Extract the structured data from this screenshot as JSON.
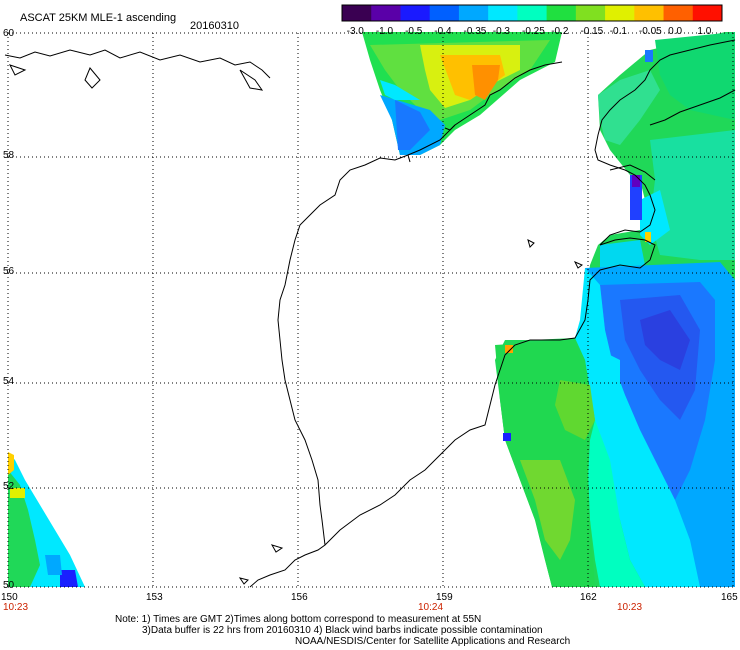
{
  "header": {
    "title": "ASCAT 25KM MLE-1 ascending",
    "date": "20160310"
  },
  "colorbar": {
    "ticks": [
      "-3.0",
      "-1.0",
      "-0.5",
      "-0.4",
      "-0.35",
      "-0.3",
      "-0.25",
      "-0.2",
      "-0.15",
      "-0.1",
      "-0.05",
      "0.0",
      "1.0"
    ],
    "colors": [
      "#3a0052",
      "#5a00a8",
      "#1a1aff",
      "#0060ff",
      "#00a8ff",
      "#00e8ff",
      "#00ffc0",
      "#20e040",
      "#80e020",
      "#e0f000",
      "#ffc000",
      "#ff6000",
      "#ff1000"
    ]
  },
  "axes": {
    "lat_labels": [
      "60",
      "58",
      "56",
      "54",
      "52",
      "50"
    ],
    "lon_labels": [
      "150",
      "153",
      "156",
      "159",
      "162",
      "165"
    ],
    "time_labels": [
      "10:23",
      "10:24",
      "10:23"
    ]
  },
  "notes": [
    "Note: 1) Times are GMT 2)Times along bottom correspond to measurement at 55N",
    "3)Data buffer is 22 hrs from 20160310 4) Black wind barbs indicate possible contamination",
    "NOAA/NESDIS/Center for Satellite Applications and Research"
  ]
}
